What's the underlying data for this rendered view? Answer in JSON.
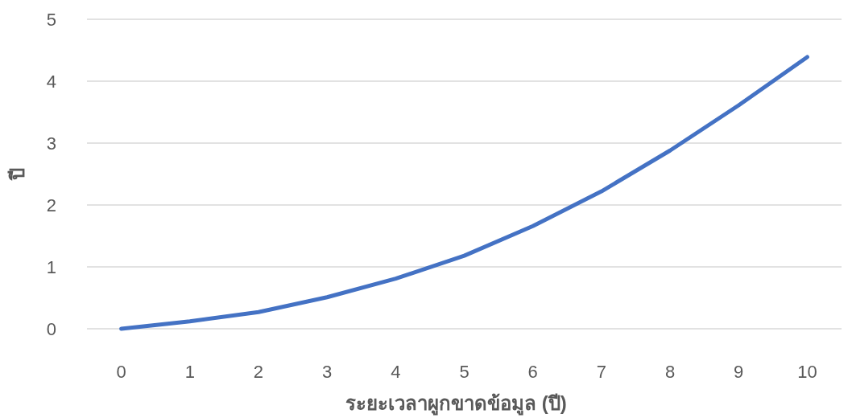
{
  "chart_data": {
    "type": "line",
    "xlabel": "ระยะเวลาผูกขาดข้อมูล (ปี)",
    "ylabel": "ปี",
    "categories": [
      "0",
      "1",
      "2",
      "3",
      "4",
      "5",
      "6",
      "7",
      "8",
      "9",
      "10"
    ],
    "series": [
      {
        "color": "#4472c4",
        "values": [
          0,
          0.12,
          0.27,
          0.51,
          0.81,
          1.18,
          1.66,
          2.22,
          2.88,
          3.61,
          4.39
        ]
      }
    ],
    "ylim": [
      0,
      5
    ],
    "yticks": [
      0,
      1,
      2,
      3,
      4,
      5
    ],
    "grid": "y",
    "marker": "none",
    "line_style": "solid"
  }
}
